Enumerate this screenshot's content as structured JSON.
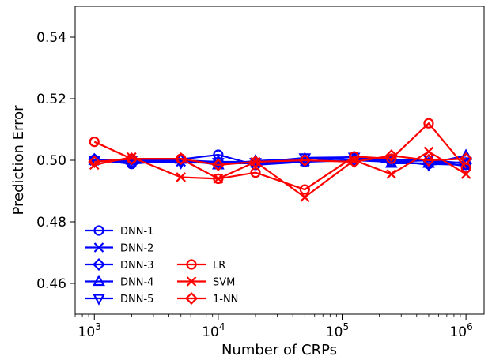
{
  "chart_data": {
    "type": "line",
    "xlabel": "Number of CRPs",
    "ylabel": "Prediction Error",
    "x_scale": "log",
    "xlim": [
      700,
      1400000
    ],
    "ylim": [
      0.45,
      0.55
    ],
    "grid": false,
    "legend": "lower-left, two columns",
    "x_tick_labels": [
      {
        "value": 1000,
        "base": "10",
        "exp": "3"
      },
      {
        "value": 10000,
        "base": "10",
        "exp": "4"
      },
      {
        "value": 100000,
        "base": "10",
        "exp": "5"
      },
      {
        "value": 1000000,
        "base": "10",
        "exp": "6"
      }
    ],
    "y_ticks": [
      0.46,
      0.48,
      0.5,
      0.52,
      0.54
    ],
    "y_tick_labels": [
      "0.46",
      "0.48",
      "0.50",
      "0.52",
      "0.54"
    ],
    "x": [
      1000,
      2000,
      5000,
      10000,
      20000,
      50000,
      125000,
      250000,
      500000,
      1000000
    ],
    "series": [
      {
        "name": "DNN-1",
        "color": "#0000ff",
        "marker": "circle",
        "values": [
          0.5002,
          0.4988,
          0.5003,
          0.5018,
          0.4985,
          0.4995,
          0.5012,
          0.4995,
          0.4988,
          0.4985
        ]
      },
      {
        "name": "DNN-2",
        "color": "#0000ff",
        "marker": "x",
        "values": [
          0.4998,
          0.4995,
          0.4995,
          0.499,
          0.499,
          0.4995,
          0.5,
          0.4995,
          0.5,
          0.498
        ]
      },
      {
        "name": "DNN-3",
        "color": "#0000ff",
        "marker": "diamond",
        "values": [
          0.5003,
          0.4992,
          0.5,
          0.4995,
          0.4995,
          0.4998,
          0.5,
          0.5002,
          0.5,
          0.499
        ]
      },
      {
        "name": "DNN-4",
        "color": "#0000ff",
        "marker": "triangle-up",
        "values": [
          0.5,
          0.5,
          0.5003,
          0.4985,
          0.4998,
          0.5005,
          0.501,
          0.499,
          0.499,
          0.5015
        ]
      },
      {
        "name": "DNN-5",
        "color": "#0000ff",
        "marker": "triangle-down",
        "values": [
          0.5,
          0.5,
          0.4992,
          0.4993,
          0.4993,
          0.5008,
          0.501,
          0.5,
          0.4985,
          0.4995
        ]
      },
      {
        "name": "LR",
        "color": "#ff0000",
        "marker": "circle",
        "values": [
          0.506,
          0.5005,
          0.5005,
          0.494,
          0.496,
          0.4905,
          0.5012,
          0.5005,
          0.512,
          0.4975
        ]
      },
      {
        "name": "SVM",
        "color": "#ff0000",
        "marker": "x",
        "values": [
          0.4985,
          0.501,
          0.4945,
          0.494,
          0.4995,
          0.488,
          0.5,
          0.4955,
          0.5028,
          0.4955
        ]
      },
      {
        "name": "1-NN",
        "color": "#ff0000",
        "marker": "diamond",
        "values": [
          0.4995,
          0.5005,
          0.5005,
          0.4985,
          0.4995,
          0.5,
          0.4995,
          0.5015,
          0.5,
          0.5005
        ]
      }
    ]
  }
}
